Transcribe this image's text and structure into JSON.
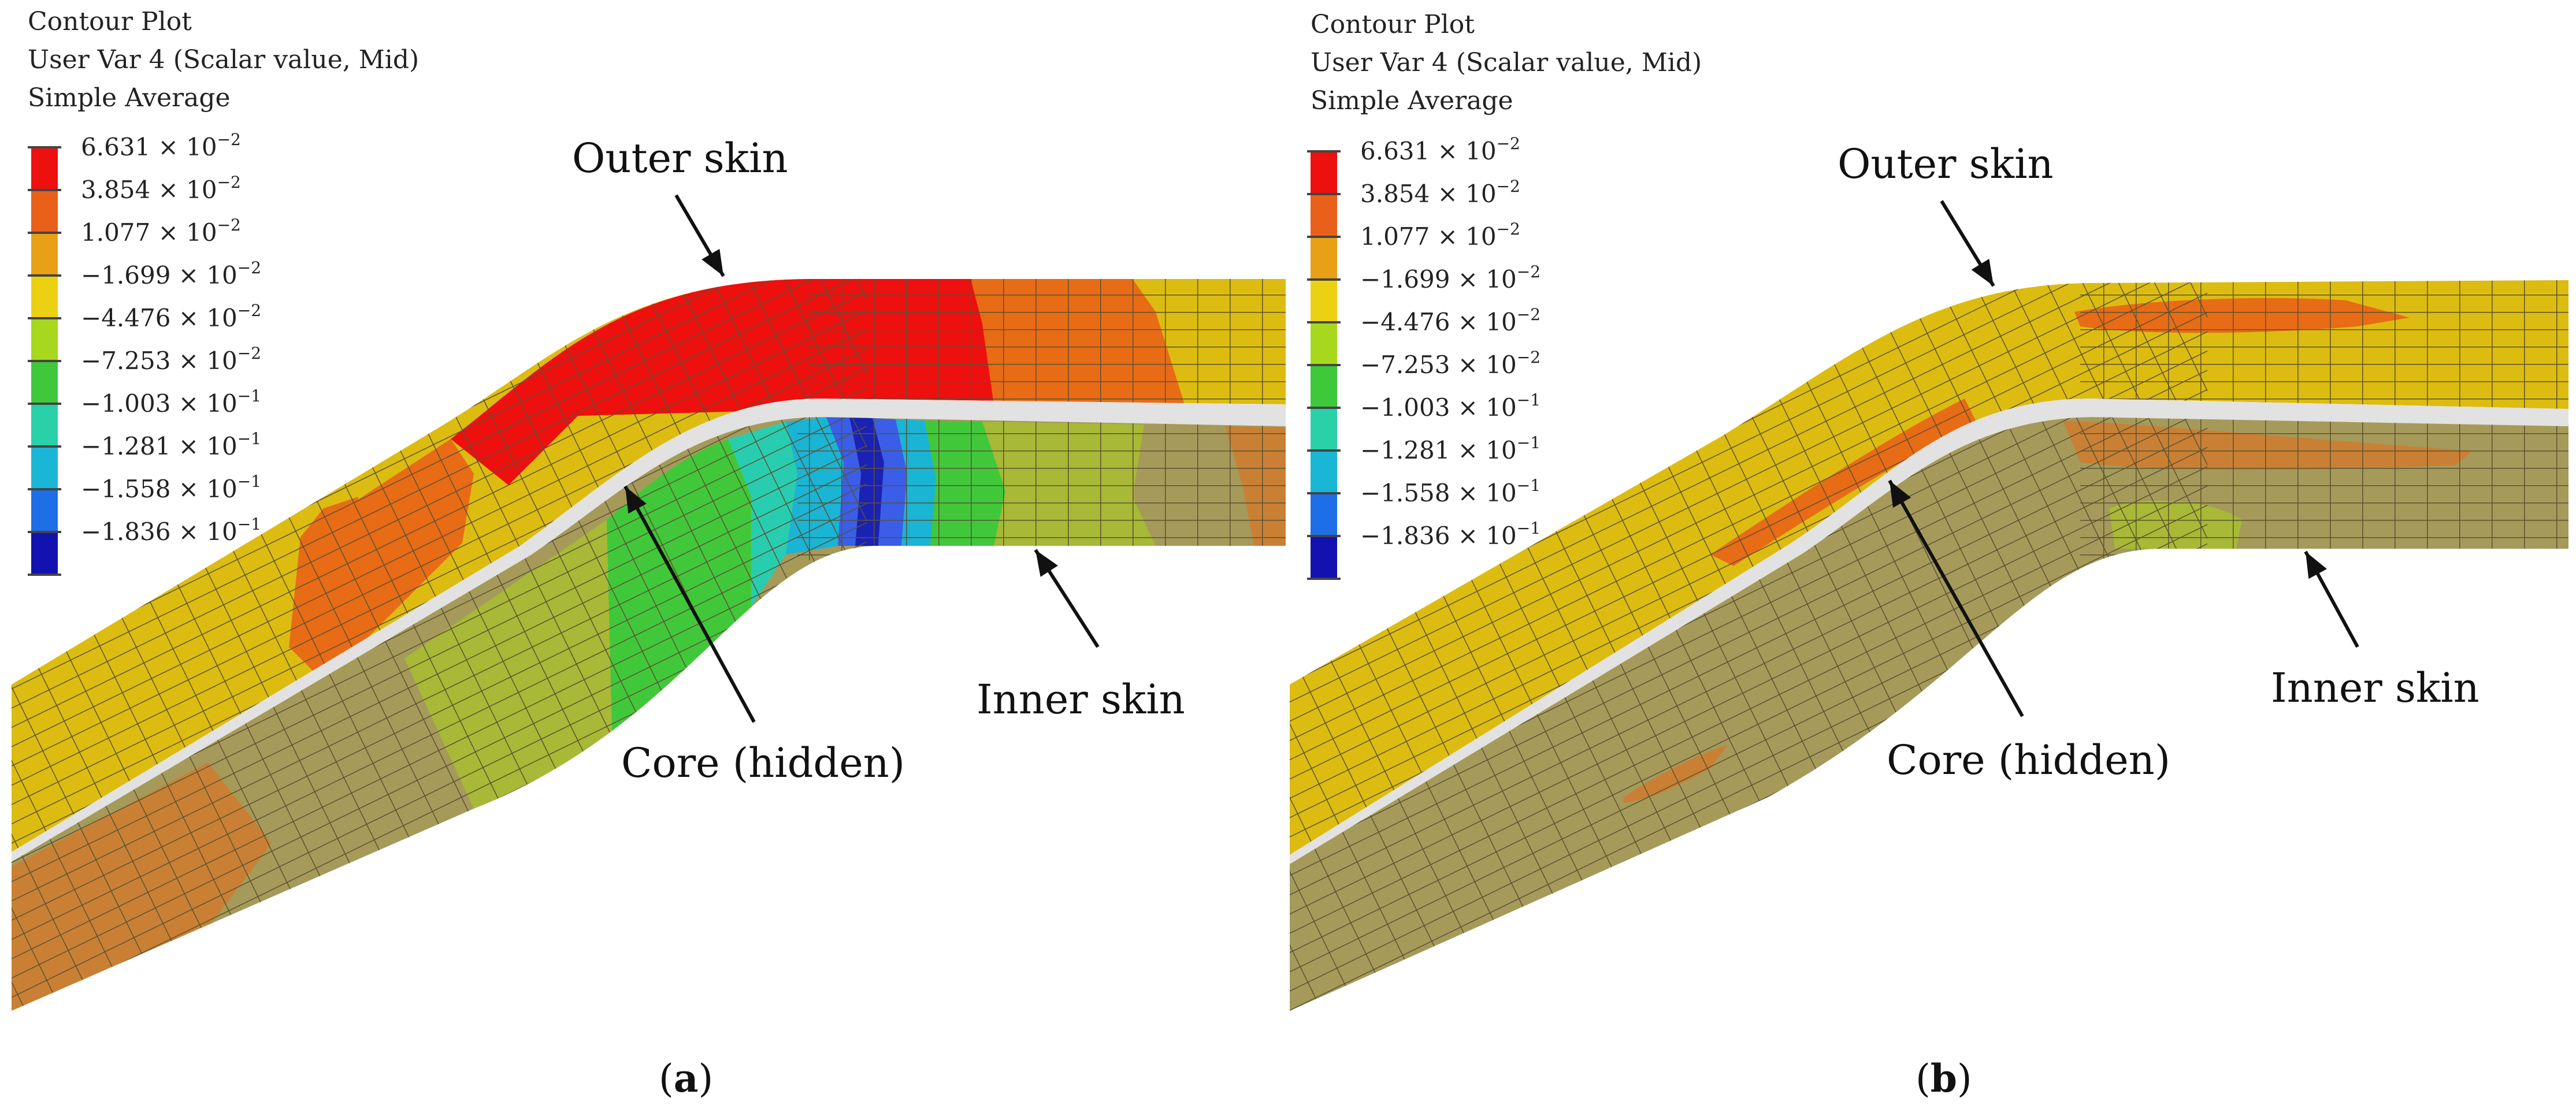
{
  "colors": {
    "red": "#ee0f0f",
    "red_orange": "#f03512",
    "orange": "#e86b16",
    "yellow": "#dcbc10",
    "yellow_green": "#a8cf1e",
    "green": "#40c83a",
    "cyan_green": "#28cdb0",
    "cyan": "#1ab4d4",
    "blue": "#3a5ee8",
    "navy": "#1a22b4",
    "core_gray": "#e2e2e2",
    "inner_tint": "#a59a5a",
    "mesh": "#5c5232",
    "arrow": "#111111"
  },
  "panels": [
    {
      "id": "a",
      "legend": {
        "title_lines": [
          "Contour Plot",
          "User Var 4 (Scalar value, Mid)",
          "Simple Average"
        ],
        "levels": [
          {
            "label": "6.631 × 10",
            "exp": "−2",
            "color": "#ee0f0f"
          },
          {
            "label": "3.854 × 10",
            "exp": "−2",
            "color": "#e8601a"
          },
          {
            "label": "1.077 × 10",
            "exp": "−2",
            "color": "#e8a016"
          },
          {
            "label": "−1.699 × 10",
            "exp": "−2",
            "color": "#ecd012"
          },
          {
            "label": "−4.476 × 10",
            "exp": "−2",
            "color": "#a8d81e"
          },
          {
            "label": "−7.253 × 10",
            "exp": "−2",
            "color": "#3ec83a"
          },
          {
            "label": "−1.003 × 10",
            "exp": "−1",
            "color": "#2ad0a8"
          },
          {
            "label": "−1.281 × 10",
            "exp": "−1",
            "color": "#1ab6d6"
          },
          {
            "label": "−1.558 × 10",
            "exp": "−1",
            "color": "#1e6ee8"
          },
          {
            "label": "−1.836 × 10",
            "exp": "−1",
            "color": "#1212b0"
          }
        ]
      },
      "labels": {
        "outer_skin": "Outer skin",
        "core": "Core (hidden)",
        "inner_skin": "Inner skin"
      },
      "caption_letter": "a"
    },
    {
      "id": "b",
      "legend": {
        "title_lines": [
          "Contour Plot",
          "User Var 4 (Scalar value, Mid)",
          "Simple Average"
        ],
        "levels": [
          {
            "label": "6.631 × 10",
            "exp": "−2",
            "color": "#ee0f0f"
          },
          {
            "label": "3.854 × 10",
            "exp": "−2",
            "color": "#e8601a"
          },
          {
            "label": "1.077 × 10",
            "exp": "−2",
            "color": "#e8a016"
          },
          {
            "label": "−1.699 × 10",
            "exp": "−2",
            "color": "#ecd012"
          },
          {
            "label": "−4.476 × 10",
            "exp": "−2",
            "color": "#a8d81e"
          },
          {
            "label": "−7.253 × 10",
            "exp": "−2",
            "color": "#3ec83a"
          },
          {
            "label": "−1.003 × 10",
            "exp": "−1",
            "color": "#2ad0a8"
          },
          {
            "label": "−1.281 × 10",
            "exp": "−1",
            "color": "#1ab6d6"
          },
          {
            "label": "−1.558 × 10",
            "exp": "−1",
            "color": "#1e6ee8"
          },
          {
            "label": "−1.836 × 10",
            "exp": "−1",
            "color": "#1212b0"
          }
        ]
      },
      "labels": {
        "outer_skin": "Outer skin",
        "core": "Core (hidden)",
        "inner_skin": "Inner skin"
      },
      "caption_letter": "b"
    }
  ]
}
